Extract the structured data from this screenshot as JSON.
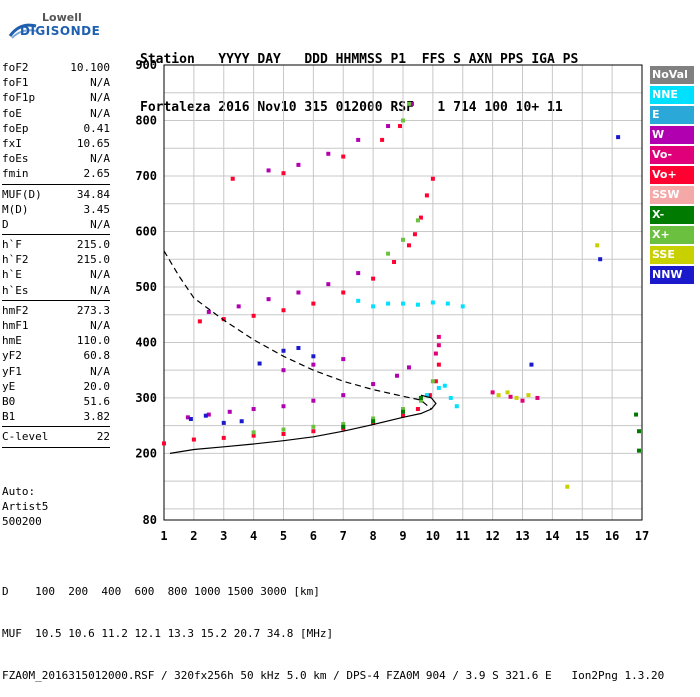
{
  "logo": {
    "line1": "Lowell",
    "line2": "DIGISONDE"
  },
  "header": {
    "line1": "Station   YYYY DAY   DDD HHMMSS P1  FFS S AXN PPS IGA PS",
    "line2": "Fortaleza 2016 Nov10 315 012000 RSF   1 714 100 10+ 11"
  },
  "params": {
    "group1": [
      {
        "name": "foF2",
        "value": "10.100"
      },
      {
        "name": "foF1",
        "value": "N/A"
      },
      {
        "name": "foF1p",
        "value": "N/A"
      },
      {
        "name": "foE",
        "value": "N/A"
      },
      {
        "name": "foEp",
        "value": "0.41"
      },
      {
        "name": "fxI",
        "value": "10.65"
      },
      {
        "name": "foEs",
        "value": "N/A"
      },
      {
        "name": "fmin",
        "value": "2.65"
      }
    ],
    "group2": [
      {
        "name": "MUF(D)",
        "value": "34.84"
      },
      {
        "name": "M(D)",
        "value": "3.45"
      },
      {
        "name": "D",
        "value": "N/A"
      }
    ],
    "group3": [
      {
        "name": "h`F",
        "value": "215.0"
      },
      {
        "name": "h`F2",
        "value": "215.0"
      },
      {
        "name": "h`E",
        "value": "N/A"
      },
      {
        "name": "h`Es",
        "value": "N/A"
      }
    ],
    "group4": [
      {
        "name": "hmF2",
        "value": "273.3"
      },
      {
        "name": "hmF1",
        "value": "N/A"
      },
      {
        "name": "hmE",
        "value": "110.0"
      },
      {
        "name": "yF2",
        "value": "60.8"
      },
      {
        "name": "yF1",
        "value": "N/A"
      },
      {
        "name": "yE",
        "value": "20.0"
      },
      {
        "name": "B0",
        "value": "51.6"
      },
      {
        "name": "B1",
        "value": "3.82"
      }
    ],
    "group5": [
      {
        "name": "C-level",
        "value": "22"
      }
    ]
  },
  "auto": {
    "line1": "Auto:",
    "line2": "Artist5",
    "line3": "500200"
  },
  "legend": [
    {
      "label": "NoVal",
      "color": "#808080"
    },
    {
      "label": "NNE",
      "color": "#00e0ff"
    },
    {
      "label": "E",
      "color": "#2aa8d8"
    },
    {
      "label": "W",
      "color": "#b000b0"
    },
    {
      "label": "Vo-",
      "color": "#e0007a"
    },
    {
      "label": "Vo+",
      "color": "#ff0030"
    },
    {
      "label": "SSW",
      "color": "#f4a8a8"
    },
    {
      "label": "X-",
      "color": "#007a00"
    },
    {
      "label": "X+",
      "color": "#6cc040"
    },
    {
      "label": "SSE",
      "color": "#c8d000"
    },
    {
      "label": "NNW",
      "color": "#1a1acc"
    }
  ],
  "footer": {
    "line1": "D    100  200  400  600  800 1000 1500 3000 [km]",
    "line2": "MUF  10.5 10.6 11.2 12.1 13.3 15.2 20.7 34.8 [MHz]",
    "line3": "FZA0M_2016315012000.RSF / 320fx256h 50 kHz 5.0 km / DPS-4 FZA0M 904 / 3.9 S 321.6 E   Ion2Png 1.3.20"
  },
  "chart_data": {
    "type": "scatter",
    "xlim": [
      1,
      17
    ],
    "ylim": [
      80,
      900
    ],
    "x_ticks": [
      1,
      2,
      3,
      4,
      5,
      6,
      7,
      8,
      9,
      10,
      11,
      12,
      13,
      14,
      15,
      16,
      17
    ],
    "y_ticks": [
      80,
      200,
      300,
      400,
      500,
      600,
      700,
      800,
      900
    ],
    "grid": true,
    "series": [
      {
        "name": "Vo+",
        "color": "#ff0030",
        "values": [
          [
            1.0,
            218
          ],
          [
            2.0,
            225
          ],
          [
            3.0,
            228
          ],
          [
            4.0,
            232
          ],
          [
            5.0,
            235
          ],
          [
            6.0,
            240
          ],
          [
            7.0,
            245
          ],
          [
            8.0,
            255
          ],
          [
            9.0,
            268
          ],
          [
            9.5,
            280
          ],
          [
            9.9,
            305
          ],
          [
            10.1,
            330
          ],
          [
            10.2,
            360
          ],
          [
            2.2,
            438
          ],
          [
            3.0,
            442
          ],
          [
            4.0,
            448
          ],
          [
            5.0,
            458
          ],
          [
            6.0,
            470
          ],
          [
            7.0,
            490
          ],
          [
            8.0,
            515
          ],
          [
            8.7,
            545
          ],
          [
            9.2,
            575
          ],
          [
            9.4,
            595
          ],
          [
            9.6,
            625
          ],
          [
            9.8,
            665
          ],
          [
            10.0,
            695
          ],
          [
            3.3,
            695
          ],
          [
            5.0,
            705
          ],
          [
            7.0,
            735
          ],
          [
            8.3,
            765
          ],
          [
            8.9,
            790
          ]
        ]
      },
      {
        "name": "W",
        "color": "#b000b0",
        "values": [
          [
            1.8,
            265
          ],
          [
            2.5,
            270
          ],
          [
            3.2,
            275
          ],
          [
            4.0,
            280
          ],
          [
            5.0,
            285
          ],
          [
            6.0,
            295
          ],
          [
            7.0,
            305
          ],
          [
            8.0,
            325
          ],
          [
            8.8,
            340
          ],
          [
            9.2,
            355
          ],
          [
            2.5,
            455
          ],
          [
            3.5,
            465
          ],
          [
            4.5,
            478
          ],
          [
            5.5,
            490
          ],
          [
            6.5,
            505
          ],
          [
            7.5,
            525
          ],
          [
            4.5,
            710
          ],
          [
            5.5,
            720
          ],
          [
            6.5,
            740
          ],
          [
            7.5,
            765
          ],
          [
            8.5,
            790
          ],
          [
            9.3,
            830
          ],
          [
            5.0,
            350
          ],
          [
            6.0,
            360
          ],
          [
            7.0,
            370
          ]
        ]
      },
      {
        "name": "NNW",
        "color": "#1a1acc",
        "values": [
          [
            1.9,
            262
          ],
          [
            2.4,
            268
          ],
          [
            3.0,
            255
          ],
          [
            3.6,
            258
          ],
          [
            4.2,
            362
          ],
          [
            5.0,
            385
          ],
          [
            5.5,
            390
          ],
          [
            6.0,
            375
          ],
          [
            13.3,
            360
          ],
          [
            15.6,
            550
          ],
          [
            16.2,
            770
          ]
        ]
      },
      {
        "name": "X+",
        "color": "#6cc040",
        "values": [
          [
            4.0,
            238
          ],
          [
            5.0,
            243
          ],
          [
            6.0,
            248
          ],
          [
            7.0,
            253
          ],
          [
            8.0,
            263
          ],
          [
            9.0,
            280
          ],
          [
            9.6,
            295
          ],
          [
            10.0,
            330
          ],
          [
            8.5,
            560
          ],
          [
            9.0,
            585
          ],
          [
            9.5,
            620
          ],
          [
            9.0,
            800
          ],
          [
            9.2,
            830
          ]
        ]
      },
      {
        "name": "X-",
        "color": "#007a00",
        "values": [
          [
            7.0,
            248
          ],
          [
            8.0,
            258
          ],
          [
            9.0,
            275
          ],
          [
            9.6,
            300
          ],
          [
            16.8,
            270
          ],
          [
            16.9,
            240
          ],
          [
            16.9,
            205
          ]
        ]
      },
      {
        "name": "NNE",
        "color": "#00e0ff",
        "values": [
          [
            9.8,
            305
          ],
          [
            10.2,
            318
          ],
          [
            10.4,
            322
          ],
          [
            10.6,
            300
          ],
          [
            10.8,
            285
          ],
          [
            8.0,
            465
          ],
          [
            8.5,
            470
          ],
          [
            9.0,
            470
          ],
          [
            9.5,
            468
          ],
          [
            10.0,
            472
          ],
          [
            10.5,
            470
          ],
          [
            11.0,
            465
          ],
          [
            7.5,
            475
          ]
        ]
      },
      {
        "name": "SSE",
        "color": "#c8d000",
        "values": [
          [
            12.2,
            305
          ],
          [
            12.5,
            310
          ],
          [
            12.8,
            300
          ],
          [
            13.2,
            305
          ],
          [
            14.5,
            140
          ],
          [
            15.5,
            575
          ]
        ]
      },
      {
        "name": "Vo-",
        "color": "#e0007a",
        "values": [
          [
            12.0,
            310
          ],
          [
            12.6,
            302
          ],
          [
            13.0,
            295
          ],
          [
            13.5,
            300
          ],
          [
            10.1,
            380
          ],
          [
            10.2,
            395
          ],
          [
            10.2,
            410
          ]
        ]
      }
    ],
    "curves": [
      {
        "name": "profile",
        "style": "solid",
        "values": [
          [
            1.2,
            200
          ],
          [
            2,
            207
          ],
          [
            3,
            212
          ],
          [
            4,
            217
          ],
          [
            5,
            223
          ],
          [
            6,
            230
          ],
          [
            7,
            240
          ],
          [
            8,
            252
          ],
          [
            9,
            265
          ],
          [
            9.6,
            272
          ],
          [
            9.95,
            280
          ],
          [
            10.1,
            290
          ],
          [
            9.95,
            300
          ],
          [
            9.6,
            305
          ]
        ]
      },
      {
        "name": "muf",
        "style": "dashed",
        "values": [
          [
            1,
            565
          ],
          [
            1.5,
            520
          ],
          [
            2,
            480
          ],
          [
            3,
            440
          ],
          [
            4,
            405
          ],
          [
            5,
            375
          ],
          [
            6,
            350
          ],
          [
            7,
            330
          ],
          [
            8,
            315
          ],
          [
            9,
            303
          ],
          [
            9.6,
            296
          ],
          [
            9.95,
            280
          ]
        ]
      }
    ]
  }
}
